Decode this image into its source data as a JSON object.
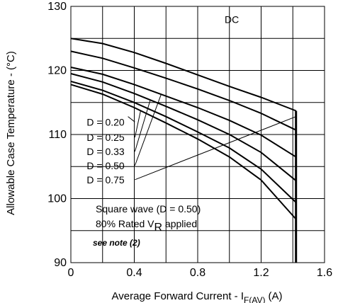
{
  "chart_data": {
    "type": "line",
    "ylabel": "Allowable Case Temperature - (°C)",
    "xlabel": {
      "text": "Average Forward Current - I",
      "subscript": "F(AV)",
      "unit": "(A)"
    },
    "xlim": [
      0,
      1.6
    ],
    "ylim": [
      90,
      130
    ],
    "x_ticks": [
      0,
      0.4,
      0.8,
      1.2,
      1.6
    ],
    "x_tick_labels": [
      "0",
      "0.4",
      "0.8",
      "1.2",
      "1.6"
    ],
    "y_ticks": [
      90,
      100,
      110,
      120,
      130
    ],
    "y_tick_labels": [
      "90",
      "100",
      "110",
      "120",
      "130"
    ],
    "grid": true,
    "x_cutoff": 1.42,
    "series": [
      {
        "name": "DC",
        "x": [
          0,
          0.2,
          0.4,
          0.6,
          0.8,
          1.0,
          1.2,
          1.42
        ],
        "y": [
          125,
          124.2,
          122.8,
          121.1,
          119.3,
          117.5,
          115.8,
          113.7
        ]
      },
      {
        "name": "D = 0.75",
        "x": [
          0,
          0.2,
          0.4,
          0.6,
          0.8,
          1.0,
          1.2,
          1.42
        ],
        "y": [
          123,
          121.9,
          120.4,
          118.8,
          117.1,
          115.3,
          113.3,
          110.7
        ]
      },
      {
        "name": "D = 0.50",
        "x": [
          0,
          0.2,
          0.4,
          0.6,
          0.8,
          1.0,
          1.2,
          1.42
        ],
        "y": [
          120.5,
          119.4,
          117.8,
          116.0,
          114.2,
          112.2,
          109.9,
          106.5
        ]
      },
      {
        "name": "D = 0.33",
        "x": [
          0,
          0.2,
          0.4,
          0.6,
          0.8,
          1.0,
          1.2,
          1.42
        ],
        "y": [
          119.5,
          118.2,
          116.4,
          114.4,
          112.3,
          110.0,
          107.2,
          102.8
        ]
      },
      {
        "name": "D = 0.25",
        "x": [
          0,
          0.2,
          0.4,
          0.6,
          0.8,
          1.0,
          1.2,
          1.42
        ],
        "y": [
          118.3,
          116.9,
          115.0,
          112.8,
          110.4,
          107.9,
          104.6,
          99.4
        ]
      },
      {
        "name": "D = 0.20",
        "x": [
          0,
          0.2,
          0.4,
          0.6,
          0.8,
          1.0,
          1.2,
          1.42
        ],
        "y": [
          117.8,
          116.3,
          114.2,
          111.8,
          109.3,
          106.5,
          102.9,
          96.8
        ]
      }
    ],
    "curve_labels": [
      {
        "text": "D = 0.20",
        "x": 0.1,
        "y": 111.4,
        "points_to": {
          "x": 0.36,
          "y": 112.8
        }
      },
      {
        "text": "D = 0.25",
        "x": 0.1,
        "y": 109.0,
        "points_to": {
          "x": 0.44,
          "y": 113.7
        }
      },
      {
        "text": "D = 0.33",
        "x": 0.1,
        "y": 106.8,
        "points_to": {
          "x": 0.5,
          "y": 115.3
        }
      },
      {
        "text": "D = 0.50",
        "x": 0.1,
        "y": 104.6,
        "points_to": {
          "x": 0.57,
          "y": 116.3
        }
      },
      {
        "text": "D = 0.75",
        "x": 0.1,
        "y": 102.4,
        "points_to": {
          "x": 1.42,
          "y": 112.8
        }
      }
    ],
    "dc_label": {
      "text": "DC",
      "x": 0.97,
      "y": 127.4
    },
    "annotations": {
      "line1": "Square wave (D = 0.50)",
      "line2_text": "80% Rated V",
      "line2_sub": "R",
      "line2_suffix": " applied",
      "note": "see note (2)"
    }
  }
}
